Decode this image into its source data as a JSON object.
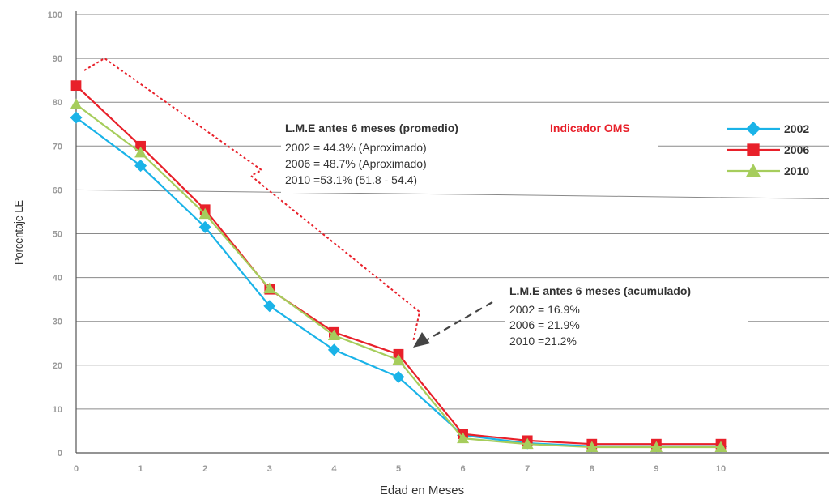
{
  "chart_data": {
    "type": "line",
    "xlabel": "Edad en Meses",
    "ylabel": "Porcentaje LE",
    "x": [
      0,
      1,
      2,
      3,
      4,
      5,
      6,
      7,
      8,
      9,
      10
    ],
    "x_ticks": [
      "0",
      "1",
      "2",
      "3",
      "4",
      "5",
      "6",
      "7",
      "8",
      "9",
      "10"
    ],
    "y_ticks": [
      "0",
      "10",
      "20",
      "30",
      "40",
      "50",
      "60",
      "70",
      "80",
      "90",
      "100"
    ],
    "ylim": [
      0,
      100
    ],
    "grid": "horizontal",
    "legend_position": "right",
    "series": [
      {
        "name": "2002",
        "color": "#1ab3e8",
        "marker": "diamond",
        "values": [
          76.5,
          65.5,
          51.5,
          33.5,
          23.5,
          17.3,
          4,
          2.2,
          1.5,
          1.5,
          1.5
        ]
      },
      {
        "name": "2006",
        "color": "#e8202a",
        "marker": "square",
        "values": [
          83.8,
          70,
          55.5,
          37.3,
          27.5,
          22.5,
          4.3,
          2.8,
          2,
          2,
          2
        ]
      },
      {
        "name": "2010",
        "color": "#a6cd5c",
        "marker": "triangle",
        "values": [
          79.5,
          68.5,
          54.5,
          37.5,
          26.8,
          21.2,
          3.3,
          2,
          1.3,
          1.3,
          1.3
        ]
      }
    ],
    "annotations": {
      "promedio": {
        "heading": "L.M.E antes 6 meses (promedio)",
        "indicator": "Indicador OMS",
        "lines": [
          "2002 = 44.3% (Aproximado)",
          "2006 = 48.7% (Aproximado)",
          "2010 =53.1% (51.8 - 54.4)"
        ]
      },
      "acumulado": {
        "heading": "L.M.E antes 6 meses (acumulado)",
        "lines": [
          "2002 = 16.9%",
          "2006 = 21.9%",
          "2010 =21.2%"
        ]
      }
    }
  }
}
